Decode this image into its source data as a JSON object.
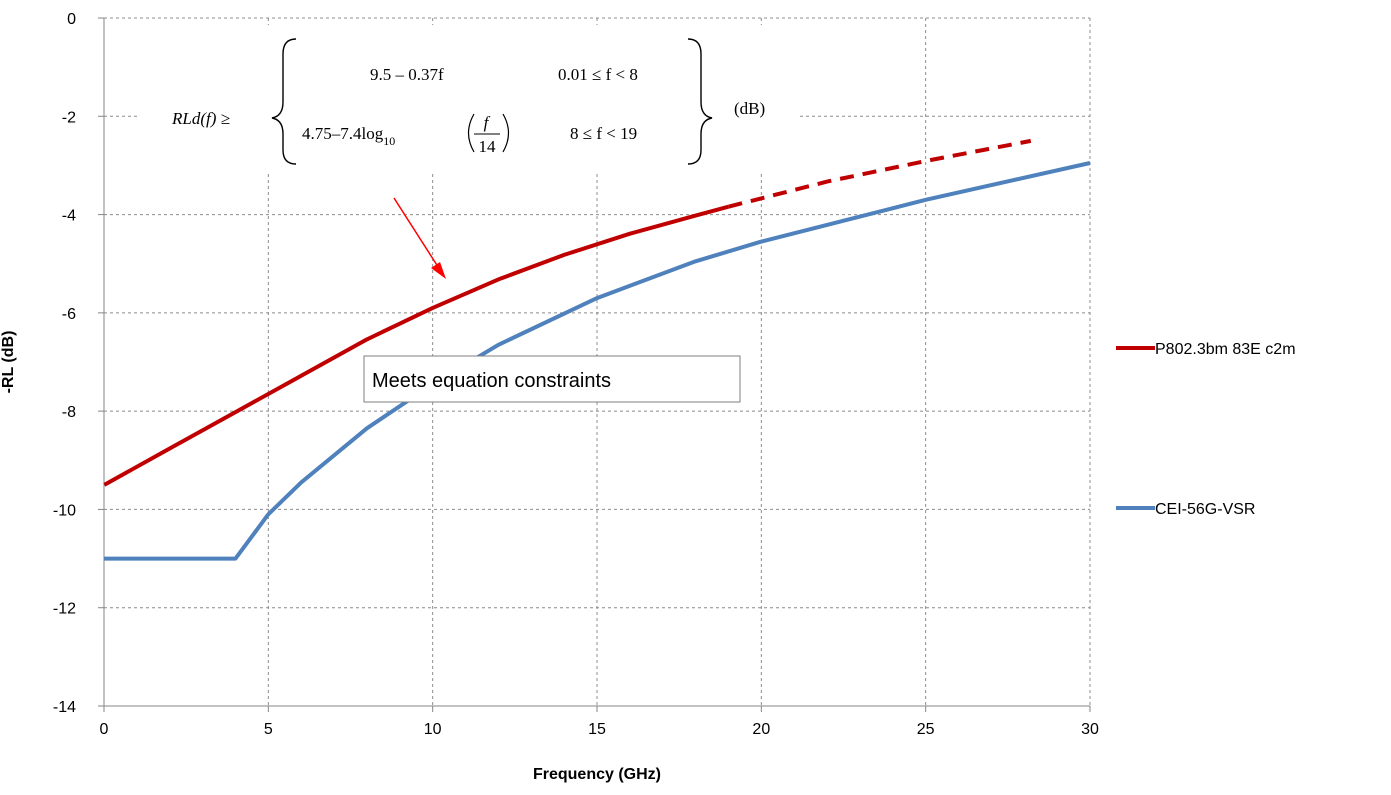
{
  "chart_data": {
    "type": "line",
    "title": "",
    "xlabel": "Frequency (GHz)",
    "ylabel": "-RL (dB)",
    "xlim": [
      0,
      30
    ],
    "ylim": [
      -14,
      0
    ],
    "x_ticks": [
      0,
      5,
      10,
      15,
      20,
      25,
      30
    ],
    "y_ticks": [
      0,
      -2,
      -4,
      -6,
      -8,
      -10,
      -12,
      -14
    ],
    "grid": true,
    "legend_position": "right",
    "series": [
      {
        "name": "P802.3bm 83E c2m",
        "color": "#c00000",
        "segments": [
          {
            "style": "solid",
            "x": [
              0.01,
              2,
              4,
              6,
              8,
              10,
              12,
              14,
              16,
              18,
              19
            ],
            "y": [
              -9.5,
              -8.76,
              -8.02,
              -7.28,
              -6.54,
              -5.9,
              -5.32,
              -4.82,
              -4.39,
              -4.02,
              -3.84
            ]
          },
          {
            "style": "dashed",
            "x": [
              19,
              22,
              25,
              28.2
            ],
            "y": [
              -3.84,
              -3.33,
              -2.91,
              -2.5
            ]
          }
        ]
      },
      {
        "name": "CEI-56G-VSR",
        "color": "#4f81bd",
        "x": [
          0,
          4,
          5,
          6,
          8,
          10,
          12,
          15,
          18,
          20,
          25,
          30
        ],
        "y": [
          -11,
          -11,
          -10.1,
          -9.45,
          -8.35,
          -7.45,
          -6.65,
          -5.7,
          -4.95,
          -4.55,
          -3.7,
          -2.95
        ]
      }
    ],
    "annotations": {
      "callout": "Meets equation constraints",
      "equation": {
        "lhs": "RLd(f) ≥",
        "row1_expr": "9.5 – 0.37f",
        "row1_cond": "0.01 ≤ f < 8",
        "row2_expr_prefix": "4.75–7.4log",
        "row2_sub": "10",
        "row2_frac_num": "f",
        "row2_frac_den": "14",
        "row2_cond": "8 ≤ f < 19",
        "unit": "(dB)"
      },
      "arrow_color": "#ff0000"
    }
  }
}
